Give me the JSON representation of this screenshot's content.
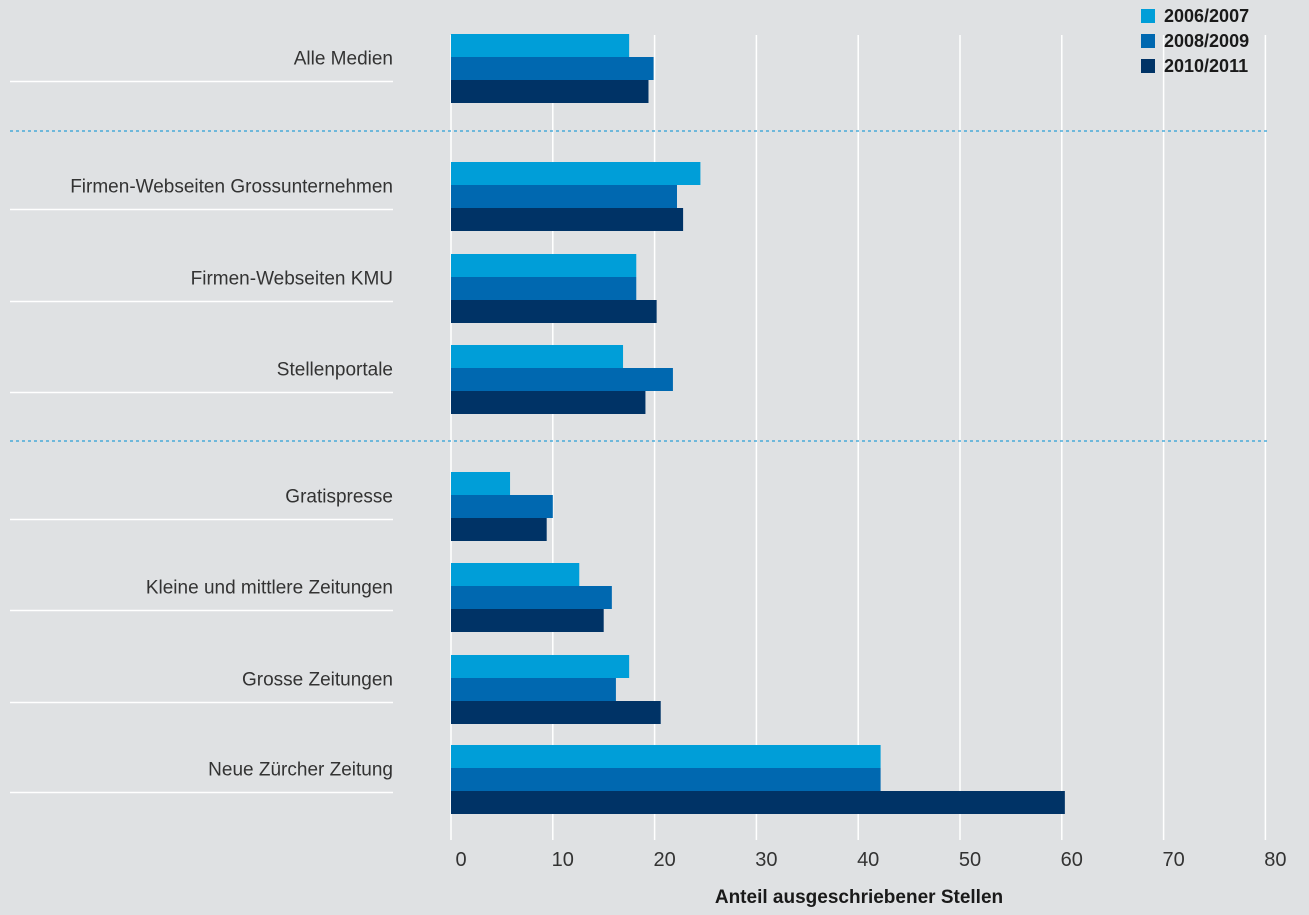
{
  "chart_data": {
    "type": "bar",
    "orientation": "horizontal",
    "categories": [
      "Alle Medien",
      "Firmen-Webseiten Grossunternehmen",
      "Firmen-Webseiten KMU",
      "Stellenportale",
      "Gratispresse",
      "Kleine und mittlere Zeitungen",
      "Grosse Zeitungen",
      "Neue Zürcher Zeitung"
    ],
    "series": [
      {
        "name": "2006/2007",
        "color": "#009ed8",
        "values": [
          17.5,
          24.5,
          18.2,
          16.9,
          5.8,
          12.6,
          17.5,
          42.2
        ]
      },
      {
        "name": "2008/2009",
        "color": "#0068b0",
        "values": [
          19.9,
          22.2,
          18.2,
          21.8,
          10.0,
          15.8,
          16.2,
          42.2
        ]
      },
      {
        "name": "2010/2011",
        "color": "#003366",
        "values": [
          19.4,
          22.8,
          20.2,
          19.1,
          9.4,
          15.0,
          20.6,
          60.3
        ]
      }
    ],
    "xlim": [
      0,
      80
    ],
    "xticks": [
      "0",
      "10",
      "20",
      "30",
      "40",
      "50",
      "60",
      "70",
      "80"
    ],
    "xlabel": "Anteil ausgeschriebener Stellen",
    "ylabel": "",
    "grid": true,
    "legend_position": "top-right",
    "group_separators_after": [
      0,
      3
    ]
  }
}
